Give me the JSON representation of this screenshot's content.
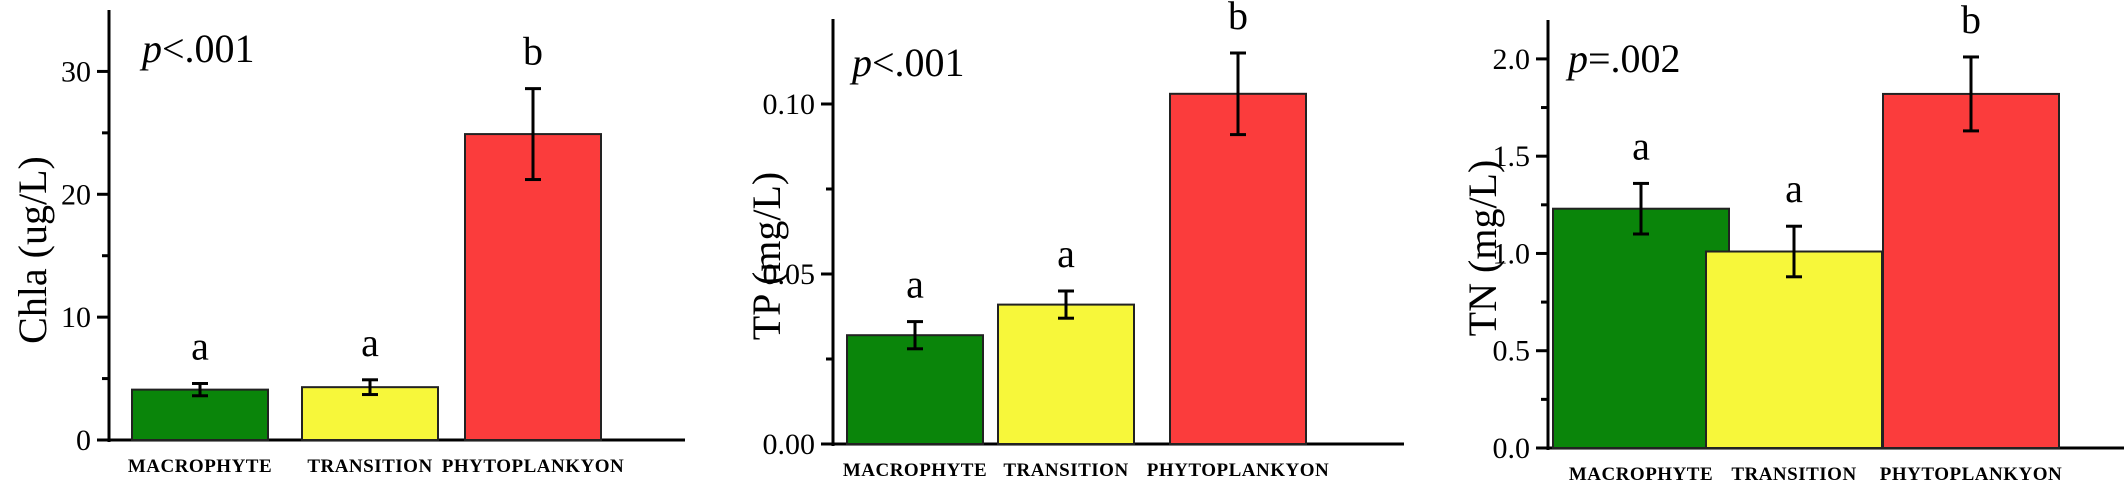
{
  "chart_data": [
    {
      "type": "bar",
      "categories": [
        "MACROPHYTE",
        "TRANSITION",
        "PHYTOPLANKYON"
      ],
      "values": [
        4.1,
        4.3,
        24.9
      ],
      "errors": [
        0.5,
        0.6,
        3.7
      ],
      "significance_letters": [
        "a",
        "a",
        "b"
      ],
      "annotation_prefix": "p",
      "annotation_value": "<.001",
      "ylabel": "Chla (ug/L)",
      "ylim": [
        0,
        35
      ],
      "yticks": [
        0,
        10,
        20,
        30
      ],
      "ytick_labels": [
        "0",
        "10",
        "20",
        "30"
      ],
      "colors": [
        "#0a850a",
        "#f7f73a",
        "#fb3c3c"
      ],
      "grid": false
    },
    {
      "type": "bar",
      "categories": [
        "MACROPHYTE",
        "TRANSITION",
        "PHYTOPLANKYON"
      ],
      "values": [
        0.032,
        0.041,
        0.103
      ],
      "errors": [
        0.004,
        0.004,
        0.012
      ],
      "significance_letters": [
        "a",
        "a",
        "b"
      ],
      "annotation_prefix": "p",
      "annotation_value": "<.001",
      "ylabel": "TP (mg/L)",
      "ylim": [
        0,
        0.125
      ],
      "yticks": [
        0,
        0.05,
        0.1
      ],
      "ytick_labels": [
        "0.00",
        "0.05",
        "0.10"
      ],
      "colors": [
        "#0a850a",
        "#f7f73a",
        "#fb3c3c"
      ],
      "grid": false
    },
    {
      "type": "bar",
      "categories": [
        "MACROPHYTE",
        "TRANSITION",
        "PHYTOPLANKYON"
      ],
      "values": [
        1.23,
        1.01,
        1.82
      ],
      "errors": [
        0.13,
        0.13,
        0.19
      ],
      "significance_letters": [
        "a",
        "a",
        "b"
      ],
      "annotation_prefix": "p",
      "annotation_value": "=.002",
      "ylabel": "TN (mg/L)",
      "ylim": [
        0,
        2.2
      ],
      "yticks": [
        0,
        0.5,
        1.0,
        1.5,
        2.0
      ],
      "ytick_labels": [
        "0.0",
        "0.5",
        "1.0",
        "1.5",
        "2.0"
      ],
      "colors": [
        "#0a850a",
        "#f7f73a",
        "#fb3c3c"
      ],
      "grid": false
    }
  ]
}
